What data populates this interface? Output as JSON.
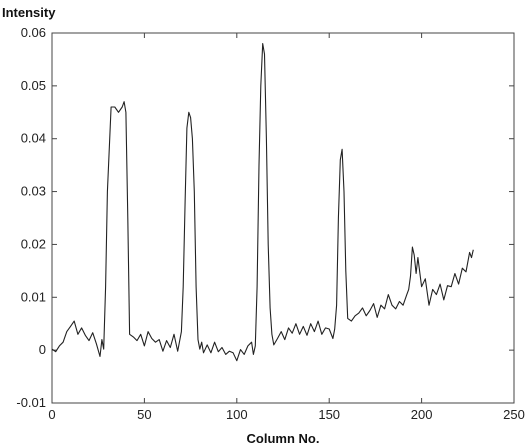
{
  "chart_data": {
    "type": "line",
    "title": "",
    "xlabel": "Column No.",
    "ylabel": "Intensity",
    "xlim": [
      0,
      250
    ],
    "ylim": [
      -0.01,
      0.06
    ],
    "x_ticks": [
      "0",
      "50",
      "100",
      "150",
      "200",
      "250"
    ],
    "y_ticks": [
      "-0.01",
      "0",
      "0.01",
      "0.02",
      "0.03",
      "0.04",
      "0.05",
      "0.06"
    ],
    "grid": false,
    "legend": "none",
    "line_color": "#222222",
    "series": [
      {
        "x": [
          0,
          2,
          4,
          6,
          8,
          10,
          12,
          14,
          16,
          18,
          20,
          22,
          24,
          26,
          27,
          28,
          29,
          30,
          32,
          34,
          36,
          38,
          39,
          40,
          41,
          42,
          44,
          46,
          48,
          50,
          52,
          54,
          56,
          58,
          60,
          62,
          64,
          66,
          68,
          70,
          71,
          72,
          73,
          74,
          75,
          76,
          77,
          78,
          79,
          80,
          81,
          82,
          84,
          86,
          88,
          90,
          92,
          94,
          96,
          98,
          100,
          102,
          104,
          106,
          108,
          109,
          110,
          111,
          112,
          113,
          114,
          115,
          116,
          117,
          118,
          119,
          120,
          122,
          124,
          126,
          128,
          130,
          132,
          134,
          136,
          138,
          140,
          142,
          144,
          146,
          148,
          150,
          152,
          153,
          154,
          155,
          156,
          157,
          158,
          159,
          160,
          162,
          164,
          166,
          168,
          170,
          172,
          174,
          176,
          178,
          180,
          182,
          184,
          186,
          188,
          190,
          192,
          193,
          194,
          195,
          196,
          197,
          198,
          200,
          202,
          204,
          206,
          208,
          210,
          212,
          214,
          216,
          218,
          220,
          222,
          224,
          226,
          227,
          228
        ],
        "y": [
          0.0002,
          -0.0003,
          0.0008,
          0.0015,
          0.0035,
          0.0045,
          0.0055,
          0.003,
          0.0042,
          0.0028,
          0.0018,
          0.0033,
          0.0012,
          -0.0012,
          0.002,
          0.0002,
          0.012,
          0.03,
          0.046,
          0.046,
          0.045,
          0.046,
          0.047,
          0.045,
          0.025,
          0.003,
          0.0025,
          0.0018,
          0.003,
          0.0008,
          0.0035,
          0.0022,
          0.0015,
          0.002,
          -0.0002,
          0.0018,
          0.0005,
          0.003,
          -0.0002,
          0.0035,
          0.012,
          0.028,
          0.042,
          0.045,
          0.044,
          0.04,
          0.03,
          0.012,
          0.002,
          0.0002,
          0.0015,
          -0.0005,
          0.001,
          -0.0005,
          0.0015,
          -0.0003,
          0.0005,
          -0.0008,
          -0.0002,
          -0.0005,
          -0.002,
          0.0001,
          -0.0008,
          0.0008,
          0.0015,
          -0.0008,
          0.0008,
          0.012,
          0.035,
          0.05,
          0.058,
          0.056,
          0.04,
          0.02,
          0.008,
          0.003,
          0.001,
          0.0022,
          0.0035,
          0.002,
          0.0042,
          0.0032,
          0.005,
          0.003,
          0.0045,
          0.0028,
          0.005,
          0.0035,
          0.0055,
          0.003,
          0.0042,
          0.004,
          0.0022,
          0.004,
          0.0085,
          0.025,
          0.036,
          0.038,
          0.03,
          0.015,
          0.006,
          0.0055,
          0.0065,
          0.007,
          0.008,
          0.0065,
          0.0075,
          0.0088,
          0.0062,
          0.0085,
          0.0078,
          0.0105,
          0.0085,
          0.0078,
          0.0092,
          0.0085,
          0.0105,
          0.0115,
          0.014,
          0.0195,
          0.018,
          0.0145,
          0.0175,
          0.012,
          0.0135,
          0.0085,
          0.0115,
          0.0105,
          0.0125,
          0.0095,
          0.0122,
          0.012,
          0.0145,
          0.0125,
          0.0155,
          0.0148,
          0.0185,
          0.0175,
          0.019
        ]
      }
    ]
  }
}
